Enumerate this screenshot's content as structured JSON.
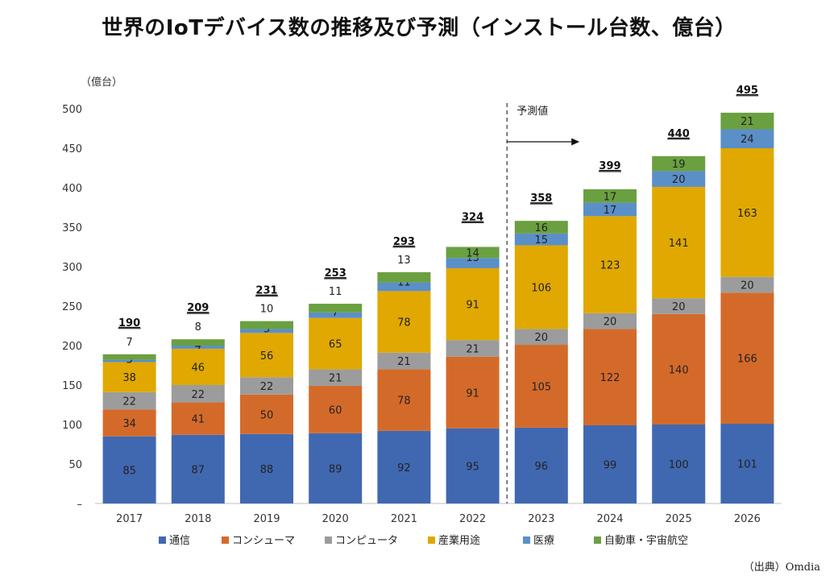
{
  "chart_data": {
    "type": "bar",
    "stacked": true,
    "title": "世界のIoTデバイス数の推移及び予測（インストール台数、億台）",
    "ylabel": "（億台）",
    "ylim": [
      0,
      500
    ],
    "yticks": [
      "–",
      "50",
      "100",
      "150",
      "200",
      "250",
      "300",
      "350",
      "400",
      "450",
      "500"
    ],
    "categories": [
      "2017",
      "2018",
      "2019",
      "2020",
      "2021",
      "2022",
      "2023",
      "2024",
      "2025",
      "2026"
    ],
    "series": [
      {
        "name": "通信",
        "color": "#4068b1",
        "values": [
          85,
          87,
          88,
          89,
          92,
          95,
          96,
          99,
          100,
          101
        ]
      },
      {
        "name": "コンシューマ",
        "color": "#d46a2a",
        "values": [
          34,
          41,
          50,
          60,
          78,
          91,
          105,
          122,
          140,
          166
        ]
      },
      {
        "name": "コンピュータ",
        "color": "#9c9c9c",
        "values": [
          22,
          22,
          22,
          21,
          21,
          21,
          20,
          20,
          20,
          20
        ]
      },
      {
        "name": "産業用途",
        "color": "#e0a800",
        "values": [
          38,
          46,
          56,
          65,
          78,
          91,
          106,
          123,
          141,
          163
        ]
      },
      {
        "name": "医療",
        "color": "#5b8fc7",
        "values": [
          3,
          4,
          5,
          7,
          11,
          13,
          15,
          17,
          20,
          24
        ]
      },
      {
        "name": "自動車・宇宙航空",
        "color": "#6aa040",
        "values": [
          7,
          8,
          10,
          11,
          13,
          14,
          16,
          17,
          19,
          21
        ]
      }
    ],
    "totals": [
      190,
      209,
      231,
      253,
      293,
      324,
      358,
      399,
      440,
      495
    ],
    "forecast_label": "予測値",
    "forecast_start_index": 6,
    "grid": false,
    "legend": "bottom"
  },
  "source": "（出典）Omdia"
}
